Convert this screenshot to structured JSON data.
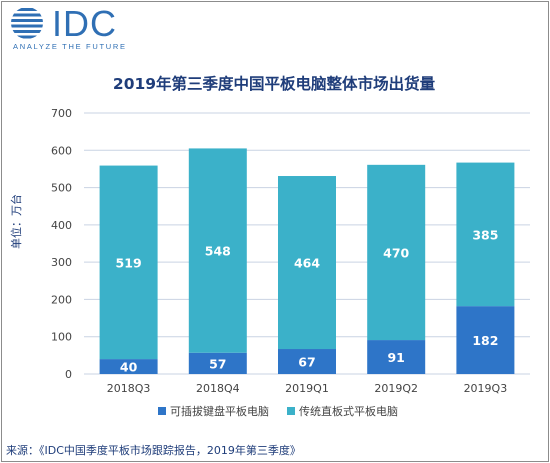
{
  "logo": {
    "brand": "IDC",
    "tagline": "ANALYZE THE FUTURE"
  },
  "colors": {
    "detachable": "#2e75c8",
    "slate": "#3bb1c9",
    "title": "#1f3d7a",
    "axis_text": "#444444",
    "grid": "#c9d3e3",
    "logo_blue": "#2f6fb4"
  },
  "chart_data": {
    "type": "bar",
    "stacked": true,
    "title": "2019年第三季度中国平板电脑整体市场出货量",
    "ylabel": "单位：万台",
    "xlabel": "",
    "categories": [
      "2018Q3",
      "2018Q4",
      "2019Q1",
      "2019Q2",
      "2019Q3"
    ],
    "ylim": [
      0,
      700
    ],
    "yticks": [
      0,
      100,
      200,
      300,
      400,
      500,
      600,
      700
    ],
    "grid": true,
    "legend_position": "bottom",
    "series": [
      {
        "name": "可插拔键盘平板电脑",
        "values": [
          40,
          57,
          67,
          91,
          182
        ]
      },
      {
        "name": "传统直板式平板电脑",
        "values": [
          519,
          548,
          464,
          470,
          385
        ]
      }
    ]
  },
  "source": "来源：《IDC中国季度平板市场跟踪报告，2019年第三季度》"
}
